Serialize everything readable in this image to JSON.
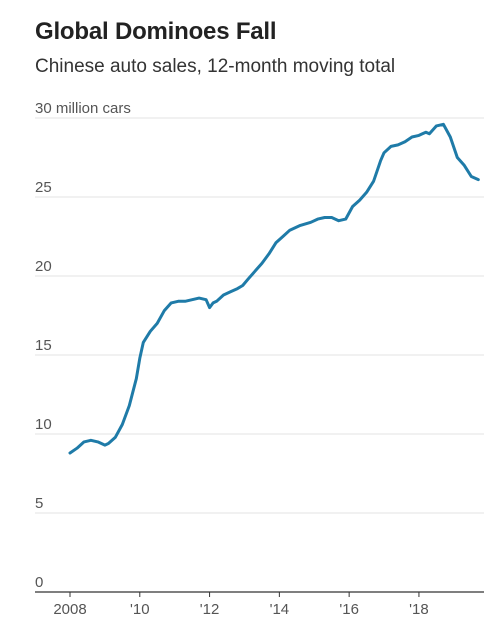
{
  "header": {
    "title": "Global Dominoes Fall",
    "subtitle": "Chinese auto sales, 12-month moving total"
  },
  "colors": {
    "line": "#1f7ba8",
    "grid": "#e3e3e3",
    "axis": "#555555"
  },
  "chart_data": {
    "type": "line",
    "title": "Global Dominoes Fall",
    "subtitle": "Chinese auto sales, 12-month moving total",
    "ylabel": "30 million cars",
    "ylim": [
      0,
      30
    ],
    "xlim": [
      2008,
      2019.75
    ],
    "y_ticks": [
      0,
      5,
      10,
      15,
      20,
      25,
      30
    ],
    "y_tick_labels": [
      "0",
      "5",
      "10",
      "15",
      "20",
      "25",
      "30 million cars"
    ],
    "x_ticks": [
      2008,
      2010,
      2012,
      2014,
      2016,
      2018
    ],
    "x_tick_labels": [
      "2008",
      "'10",
      "'12",
      "'14",
      "'16",
      "'18"
    ],
    "grid": "horizontal",
    "series": [
      {
        "name": "",
        "x": [
          2008.0,
          2008.2,
          2008.4,
          2008.6,
          2008.8,
          2009.0,
          2009.1,
          2009.3,
          2009.5,
          2009.7,
          2009.9,
          2010.0,
          2010.1,
          2010.3,
          2010.5,
          2010.7,
          2010.9,
          2011.1,
          2011.3,
          2011.5,
          2011.7,
          2011.9,
          2012.0,
          2012.1,
          2012.2,
          2012.4,
          2012.6,
          2012.8,
          2012.95,
          2013.1,
          2013.3,
          2013.5,
          2013.7,
          2013.9,
          2014.1,
          2014.3,
          2014.6,
          2014.9,
          2015.1,
          2015.3,
          2015.5,
          2015.7,
          2015.9,
          2016.1,
          2016.3,
          2016.5,
          2016.7,
          2016.9,
          2017.0,
          2017.2,
          2017.4,
          2017.6,
          2017.8,
          2018.0,
          2018.1,
          2018.2,
          2018.3,
          2018.5,
          2018.7,
          2018.9,
          2019.1,
          2019.3,
          2019.5,
          2019.7
        ],
        "y": [
          8.8,
          9.1,
          9.5,
          9.6,
          9.5,
          9.3,
          9.4,
          9.8,
          10.6,
          11.8,
          13.5,
          14.8,
          15.8,
          16.5,
          17.0,
          17.8,
          18.3,
          18.4,
          18.4,
          18.5,
          18.6,
          18.5,
          18.0,
          18.3,
          18.4,
          18.8,
          19.0,
          19.2,
          19.4,
          19.8,
          20.3,
          20.8,
          21.4,
          22.1,
          22.5,
          22.9,
          23.2,
          23.4,
          23.6,
          23.7,
          23.7,
          23.5,
          23.6,
          24.4,
          24.8,
          25.3,
          26.0,
          27.3,
          27.8,
          28.2,
          28.3,
          28.5,
          28.8,
          28.9,
          29.0,
          29.1,
          29.0,
          29.5,
          29.6,
          28.8,
          27.5,
          27.0,
          26.3,
          26.1
        ]
      }
    ]
  }
}
